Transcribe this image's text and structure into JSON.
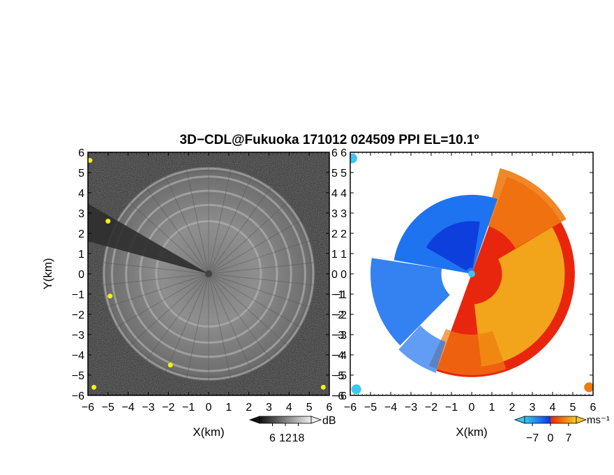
{
  "title": "3D−CDL@Fukuoka 171012 024509 PPI EL=10.1º",
  "chart_data": [
    {
      "type": "heatmap",
      "panel": "left",
      "quantity": "signal intensity",
      "xlabel": "X(km)",
      "ylabel": "Y(km)",
      "xlim": [
        -6,
        6
      ],
      "ylim": [
        -6,
        6
      ],
      "xticks": [
        "−6",
        "−5",
        "−4",
        "−3",
        "−2",
        "−1",
        "0",
        "1",
        "2",
        "3",
        "4",
        "5",
        "6"
      ],
      "yticks": [
        "−6",
        "−5",
        "−4",
        "−3",
        "−2",
        "−1",
        "0",
        "1",
        "2",
        "3",
        "4",
        "5",
        "6"
      ],
      "colormap": "grayscale",
      "colorbar": {
        "unit": "dB",
        "ticks": [
          "6",
          "12",
          "18"
        ],
        "tick_values": [
          6,
          12,
          18
        ],
        "range": [
          0,
          24
        ]
      },
      "features": {
        "radar_center": [
          0,
          0
        ],
        "echo_outer_radius_km": 5.3,
        "blocked_sector_azimuth_deg": [
          285,
          300
        ],
        "ring_radii_km": [
          2.6,
          3.4,
          4.1,
          4.8,
          5.2
        ]
      }
    },
    {
      "type": "heatmap",
      "panel": "right",
      "quantity": "Doppler velocity",
      "xlabel": "X(km)",
      "ylim": [
        -6,
        6
      ],
      "xlim": [
        -6,
        6
      ],
      "xticks": [
        "−6",
        "−5",
        "−4",
        "−3",
        "−2",
        "−1",
        "0",
        "1",
        "2",
        "3",
        "4",
        "5",
        "6"
      ],
      "yticks": [
        "−6",
        "−5",
        "−4",
        "−3",
        "−2",
        "−1",
        "0",
        "1",
        "2",
        "3",
        "4",
        "5",
        "6"
      ],
      "colormap": "blue-to-orange diverging",
      "colorbar": {
        "unit": "ms⁻¹",
        "ticks": [
          "−7",
          "0",
          "7"
        ],
        "tick_values": [
          -7,
          0,
          7
        ],
        "range": [
          -10,
          10
        ]
      },
      "features": {
        "radar_center": [
          0,
          0
        ],
        "approaching_sector": "north-west (blue, negative)",
        "receding_sector": "south-east (orange/red, positive)"
      }
    }
  ],
  "colors": {
    "neg_dark": "#0b36d9",
    "neg_mid": "#1e73f0",
    "neg_light": "#38c8f0",
    "pos_red": "#e8260e",
    "pos_orange": "#f07a10",
    "pos_yellow": "#f5cf20",
    "highlight_yellow": "#f2f20c"
  }
}
